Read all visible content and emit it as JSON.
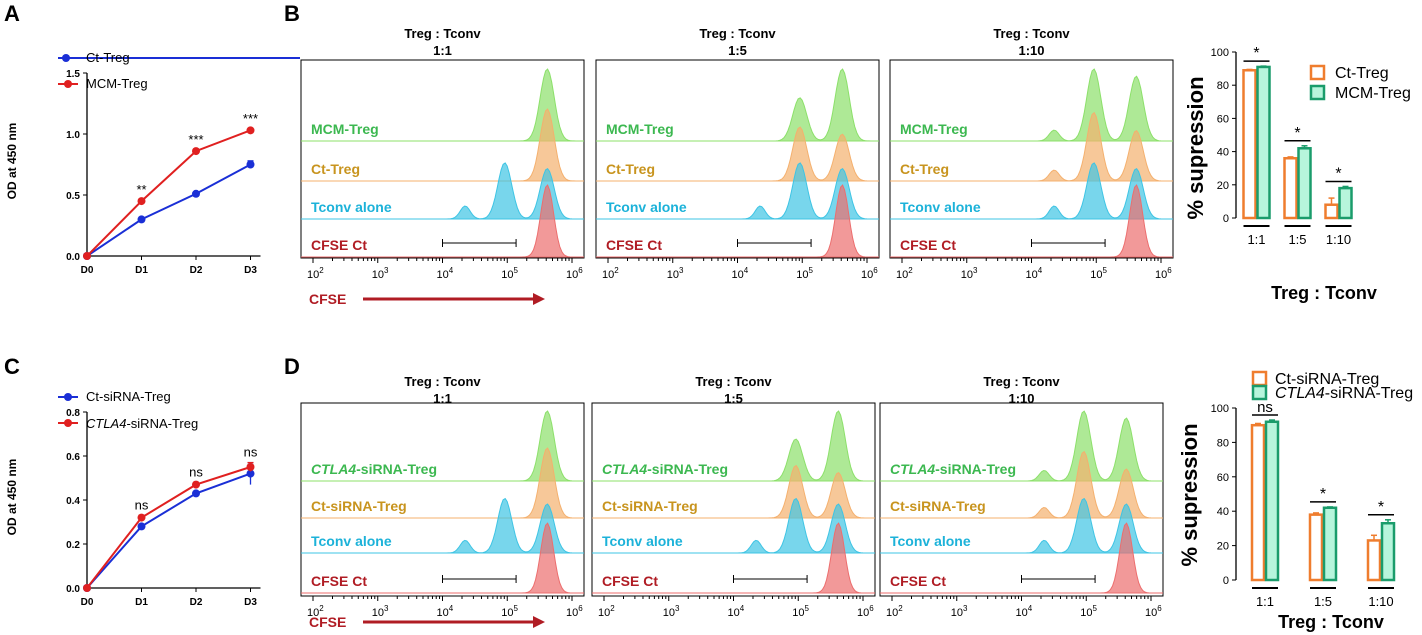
{
  "colors": {
    "blue": "#1a2fd6",
    "red": "#e02020",
    "orange": "#ef7d2e",
    "green": "#1a9c6b",
    "green_fill": "#b7f5dc",
    "mcm": "#3cb850",
    "ct": "#c8941e",
    "tconv": "#1cb2d9",
    "cfse": "#b01c24",
    "hist_green": "#8ce06a",
    "hist_orange": "#f4b06e",
    "hist_cyan": "#3ec4e4",
    "hist_red": "#ec6e6e"
  },
  "panels": {
    "A": {
      "letter": "A",
      "legend": [
        "Ct-Treg",
        "MCM-Treg"
      ]
    },
    "B": {
      "letter": "B",
      "row_labels": [
        "MCM-Treg",
        "Ct-Treg",
        "Tconv alone",
        "CFSE Ct"
      ],
      "axis_label": "CFSE"
    },
    "C": {
      "letter": "C",
      "legend_a": "Ct-siRNA-Treg",
      "legend_b_italic": "CTLA4",
      "legend_b_rest": "-siRNA-Treg"
    },
    "D": {
      "letter": "D",
      "row_label_italic": "CTLA4",
      "row_label_rest": "-siRNA-Treg",
      "row_labels": [
        "Ct-siRNA-Treg",
        "Tconv alone",
        "CFSE Ct"
      ],
      "axis_label": "CFSE"
    }
  },
  "flow": {
    "header": "Treg : Tconv",
    "ratios": [
      "1:1",
      "1:5",
      "1:10"
    ],
    "ticks": [
      "10",
      "10",
      "10",
      "10",
      "10"
    ],
    "tick_exps": [
      "2",
      "3",
      "4",
      "5",
      "6"
    ]
  },
  "chart_data": [
    {
      "id": "A",
      "type": "line",
      "xlabel": "",
      "ylabel": "OD at 450 nm",
      "categories": [
        "D0",
        "D1",
        "D2",
        "D3"
      ],
      "ylim": [
        0,
        1.5
      ],
      "yticks": [
        "0.0",
        "0.5",
        "1.0",
        "1.5"
      ],
      "series": [
        {
          "name": "Ct-Treg",
          "values": [
            0.0,
            0.3,
            0.51,
            0.75
          ],
          "errors": [
            0,
            0.01,
            0.01,
            0.03
          ]
        },
        {
          "name": "MCM-Treg",
          "values": [
            0.0,
            0.45,
            0.86,
            1.03
          ],
          "errors": [
            0,
            0.01,
            0.01,
            0.01
          ]
        }
      ],
      "annotations": [
        "",
        "**",
        "***",
        "***"
      ]
    },
    {
      "id": "B_bar",
      "type": "bar",
      "xlabel": "Treg : Tconv",
      "ylabel": "% supression",
      "categories": [
        "1:1",
        "1:5",
        "1:10"
      ],
      "ylim": [
        0,
        100
      ],
      "yticks": [
        "0",
        "20",
        "40",
        "60",
        "80",
        "100"
      ],
      "series": [
        {
          "name": "Ct-Treg",
          "values": [
            89,
            36,
            8
          ],
          "errors": [
            0.5,
            0.8,
            4
          ]
        },
        {
          "name": "MCM-Treg",
          "values": [
            91,
            42,
            18
          ],
          "errors": [
            0.5,
            1.5,
            1
          ]
        }
      ],
      "annotations": [
        "*",
        "*",
        "*"
      ]
    },
    {
      "id": "C",
      "type": "line",
      "xlabel": "",
      "ylabel": "OD at 450 nm",
      "categories": [
        "D0",
        "D1",
        "D2",
        "D3"
      ],
      "ylim": [
        0,
        0.8
      ],
      "yticks": [
        "0.0",
        "0.2",
        "0.4",
        "0.6",
        "0.8"
      ],
      "series": [
        {
          "name": "Ct-siRNA-Treg",
          "values": [
            0.0,
            0.28,
            0.43,
            0.52
          ],
          "errors": [
            0,
            0.01,
            0.01,
            0.05
          ]
        },
        {
          "name": "CTLA4-siRNA-Treg",
          "values": [
            0.0,
            0.32,
            0.47,
            0.55
          ],
          "errors": [
            0,
            0.01,
            0.01,
            0.02
          ]
        }
      ],
      "annotations": [
        "",
        "ns",
        "ns",
        "ns"
      ]
    },
    {
      "id": "D_bar",
      "type": "bar",
      "xlabel": "Treg : Tconv",
      "ylabel": "% supression",
      "categories": [
        "1:1",
        "1:5",
        "1:10"
      ],
      "ylim": [
        0,
        100
      ],
      "yticks": [
        "0",
        "20",
        "40",
        "60",
        "80",
        "100"
      ],
      "series": [
        {
          "name": "Ct-siRNA-Treg",
          "values": [
            90,
            38,
            23
          ],
          "errors": [
            1,
            1,
            3
          ]
        },
        {
          "name": "CTLA4-siRNA-Treg",
          "values": [
            92,
            42,
            33
          ],
          "errors": [
            1,
            0.5,
            2
          ]
        }
      ],
      "annotations": [
        "ns",
        "*",
        "*"
      ]
    }
  ]
}
